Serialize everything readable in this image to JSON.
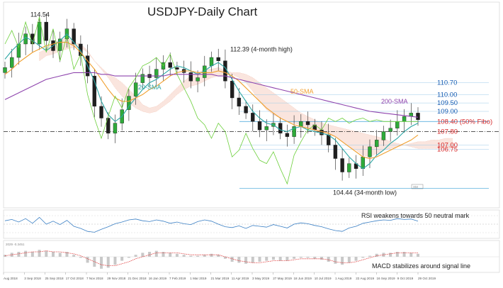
{
  "chart_data": {
    "type": "line",
    "title": "USDJPY-Daily Chart",
    "xlabel": "",
    "ylabel": "",
    "ylim": [
      103.4,
      115.4
    ],
    "x_ticks": [
      "Aug 2018",
      "3 Sep 2018",
      "25 Sep 2018",
      "17 Oct 2018",
      "7 Nov 2018",
      "29 Nov 2018",
      "21 Dec 2018",
      "16 Jan 2019",
      "7 Feb 2019",
      "1 Mar 2019",
      "21 Mar 2019",
      "11 Apr 2019",
      "3 May 2019",
      "27 May 2019",
      "18 Jun 2019",
      "10 Jul 2019",
      "1 Aug 2019",
      "22 Aug 2019",
      "16 Sep 2019",
      "9 Oct 2019",
      "29 Oct 2019"
    ],
    "price_labels": [
      {
        "text": "110.70",
        "value": 110.7,
        "color": "#1a5fb4"
      },
      {
        "text": "110.00",
        "value": 110.0,
        "color": "#1a5fb4"
      },
      {
        "text": "109.50",
        "value": 109.5,
        "color": "#1a5fb4"
      },
      {
        "text": "109.00",
        "value": 109.0,
        "color": "#1a5fb4"
      },
      {
        "text": "108.40 (50% Fibo)",
        "value": 108.4,
        "color": "#d62728"
      },
      {
        "text": "107.80",
        "value": 107.8,
        "color": "#d62728"
      },
      {
        "text": "107.00",
        "value": 107.0,
        "color": "#d62728"
      },
      {
        "text": "106.75",
        "value": 106.75,
        "color": "#d62728"
      }
    ],
    "annotations": [
      {
        "text": "114.54",
        "value": 114.54,
        "color": "#222222"
      },
      {
        "text": "112.39 (4-month high)",
        "value": 112.39,
        "color": "#222222"
      },
      {
        "text": "104.44 (34-month low)",
        "value": 104.44,
        "color": "#222222"
      },
      {
        "text": "20-SMA",
        "color": "#2ca6a4"
      },
      {
        "text": "50-SMA",
        "color": "#f0a030"
      },
      {
        "text": "200-SMA",
        "color": "#8e44ad"
      }
    ],
    "levels": {
      "fibo_100": 114.54,
      "fibo_50": 108.4,
      "fibo_0": 104.44,
      "dashed_level": 107.8
    },
    "series": [
      {
        "name": "20-SMA",
        "color": "#2ca6a4",
        "values": [
          112.1,
          112.6,
          113.0,
          113.4,
          113.2,
          112.9,
          112.6,
          112.9,
          113.2,
          113.6,
          113.1,
          112.6,
          111.7,
          110.8,
          109.6,
          108.8,
          108.4,
          108.7,
          109.3,
          109.8,
          110.3,
          110.7,
          110.9,
          111.2,
          111.5,
          111.7,
          111.6,
          111.4,
          111.2,
          111.4,
          111.7,
          111.9,
          111.6,
          110.9,
          110.2,
          109.6,
          109.0,
          108.6,
          108.3,
          108.2,
          107.9,
          107.8,
          108.0,
          108.1,
          107.9,
          107.8,
          107.7,
          107.6,
          107.3,
          106.8,
          106.3,
          105.9,
          105.6,
          105.9,
          106.4,
          106.7,
          107.1,
          107.4,
          107.8,
          108.1,
          108.3
        ]
      },
      {
        "name": "50-SMA",
        "color": "#f0a030",
        "values": [
          111.2,
          111.5,
          111.9,
          112.2,
          112.5,
          112.7,
          112.9,
          113.0,
          113.1,
          113.1,
          112.9,
          112.5,
          112.0,
          111.5,
          110.9,
          110.3,
          109.8,
          109.6,
          109.6,
          109.8,
          110.0,
          110.3,
          110.5,
          110.8,
          111.1,
          111.3,
          111.4,
          111.4,
          111.3,
          111.3,
          111.3,
          111.4,
          111.3,
          111.1,
          110.8,
          110.4,
          110.0,
          109.6,
          109.2,
          108.9,
          108.6,
          108.4,
          108.2,
          108.1,
          108.0,
          107.9,
          107.8,
          107.7,
          107.5,
          107.2,
          106.9,
          106.6,
          106.3,
          106.2,
          106.3,
          106.5,
          106.7,
          106.9,
          107.1,
          107.3,
          107.6
        ]
      },
      {
        "name": "200-SMA",
        "color": "#8e44ad",
        "values": [
          109.7,
          109.9,
          110.1,
          110.3,
          110.5,
          110.7,
          110.9,
          111.0,
          111.1,
          111.2,
          111.3,
          111.3,
          111.3,
          111.3,
          111.2,
          111.2,
          111.1,
          111.1,
          111.1,
          111.1,
          111.1,
          111.1,
          111.1,
          111.1,
          111.2,
          111.2,
          111.2,
          111.2,
          111.2,
          111.2,
          111.2,
          111.1,
          111.1,
          111.0,
          110.9,
          110.8,
          110.7,
          110.6,
          110.5,
          110.4,
          110.3,
          110.2,
          110.1,
          110.0,
          109.9,
          109.8,
          109.7,
          109.6,
          109.5,
          109.4,
          109.3,
          109.2,
          109.1,
          109.0,
          108.95,
          108.9,
          108.85,
          108.8,
          108.75,
          108.7,
          108.65
        ]
      },
      {
        "name": "Chikou",
        "color": "#6bcf3a",
        "values": [
          113.0,
          113.8,
          112.8,
          114.3,
          113.0,
          114.6,
          112.5,
          113.9,
          112.0,
          113.5,
          111.5,
          112.4,
          110.0,
          108.6,
          107.4,
          108.7,
          109.9,
          109.2,
          110.4,
          111.0,
          111.7,
          111.9,
          112.2,
          111.7,
          112.4,
          111.2,
          110.4,
          109.6,
          108.6,
          108.2,
          107.4,
          108.3,
          107.8,
          106.3,
          106.7,
          107.7,
          106.8,
          106.1,
          105.9,
          106.6,
          105.6,
          104.7,
          106.4,
          107.2,
          107.9,
          108.2,
          107.9,
          108.6,
          108.4,
          108.6,
          108.3,
          108.5,
          108.6,
          108.4,
          108.5,
          108.4,
          108.4,
          108.4,
          108.4,
          108.4,
          108.4
        ]
      }
    ],
    "candles_close": [
      111.6,
      112.2,
      113.0,
      113.6,
      113.0,
      114.3,
      113.2,
      112.6,
      113.3,
      113.9,
      113.0,
      112.3,
      111.1,
      109.3,
      108.6,
      107.7,
      108.3,
      109.1,
      109.9,
      110.7,
      111.2,
      111.0,
      111.5,
      111.9,
      111.6,
      111.5,
      111.3,
      110.8,
      111.0,
      111.7,
      112.2,
      112.0,
      110.8,
      109.8,
      109.3,
      108.9,
      108.4,
      107.9,
      108.1,
      108.3,
      107.7,
      107.5,
      108.1,
      108.4,
      108.2,
      107.9,
      107.6,
      107.0,
      106.2,
      105.4,
      105.9,
      105.6,
      106.3,
      106.9,
      107.3,
      107.8,
      108.0,
      108.4,
      108.7,
      108.9,
      108.5
    ],
    "cloud": {
      "span_a": [
        112.5,
        112.7,
        113.1,
        113.2,
        113.4,
        113.1,
        113.0,
        112.6,
        112.0,
        111.5,
        111.2,
        111.0,
        110.7,
        110.3,
        109.9,
        109.4,
        109.2,
        109.3,
        109.6,
        110.0,
        110.4,
        110.8,
        111.1,
        111.3,
        111.5,
        111.5,
        111.6,
        111.4,
        111.2,
        111.0,
        110.7,
        110.2,
        109.6,
        109.1,
        108.8,
        108.6,
        108.4,
        108.3,
        108.2,
        108.0,
        107.9,
        107.7,
        107.6,
        107.5,
        107.2,
        106.9,
        106.7,
        106.4,
        106.3,
        106.5,
        106.7,
        106.8,
        106.9,
        107.0,
        107.1,
        107.2,
        107.2,
        107.3,
        107.3,
        107.4,
        107.4
      ],
      "span_b": [
        112.0,
        112.3,
        112.4,
        112.6,
        112.7,
        112.8,
        112.8,
        112.5,
        112.0,
        111.6,
        111.0,
        110.4,
        109.9,
        109.5,
        109.2,
        109.0,
        108.9,
        109.0,
        109.3,
        109.6,
        110.0,
        110.3,
        110.5,
        110.6,
        110.8,
        111.0,
        111.1,
        111.2,
        111.3,
        111.3,
        111.2,
        111.0,
        110.7,
        110.4,
        110.1,
        109.8,
        109.5,
        109.2,
        108.9,
        108.7,
        108.5,
        108.3,
        108.2,
        108.1,
        108.0,
        107.9,
        107.8,
        107.7,
        107.6,
        107.5,
        107.4,
        107.2,
        107.1,
        107.0,
        106.9,
        106.8,
        106.8,
        106.8,
        106.8,
        106.8,
        106.8
      ]
    },
    "rsi": {
      "label": "RSI weakens towards 50 neutral mark",
      "values": [
        58,
        61,
        55,
        63,
        52,
        66,
        50,
        57,
        49,
        59,
        45,
        40,
        33,
        31,
        38,
        44,
        51,
        55,
        60,
        62,
        58,
        56,
        60,
        57,
        52,
        55,
        51,
        49,
        56,
        60,
        57,
        50,
        44,
        42,
        46,
        40,
        47,
        45,
        43,
        49,
        45,
        41,
        50,
        53,
        51,
        47,
        44,
        39,
        35,
        33,
        41,
        45,
        52,
        55,
        58,
        60,
        59,
        63,
        61,
        62,
        57
      ],
      "levels": [
        30,
        50,
        70
      ]
    },
    "macd": {
      "label": "MACD stabilizes around signal line",
      "header": "2029 -0.3451",
      "histogram": [
        0.2,
        0.4,
        0.5,
        0.6,
        0.5,
        0.7,
        0.6,
        0.5,
        0.4,
        0.5,
        0.2,
        -0.1,
        -0.6,
        -1.0,
        -1.2,
        -1.1,
        -0.8,
        -0.4,
        -0.1,
        0.2,
        0.4,
        0.5,
        0.6,
        0.5,
        0.4,
        0.3,
        0.2,
        0.1,
        0.1,
        0.2,
        0.3,
        0.2,
        -0.2,
        -0.5,
        -0.6,
        -0.7,
        -0.6,
        -0.5,
        -0.4,
        -0.3,
        -0.4,
        -0.4,
        -0.2,
        -0.1,
        -0.1,
        -0.2,
        -0.3,
        -0.5,
        -0.7,
        -0.8,
        -0.6,
        -0.4,
        -0.1,
        0.1,
        0.3,
        0.4,
        0.4,
        0.5,
        0.5,
        0.4,
        0.3
      ],
      "signal": [
        0.1,
        0.2,
        0.3,
        0.4,
        0.5,
        0.5,
        0.6,
        0.5,
        0.5,
        0.4,
        0.3,
        0.1,
        -0.2,
        -0.5,
        -0.8,
        -0.9,
        -0.9,
        -0.7,
        -0.5,
        -0.2,
        0.0,
        0.2,
        0.4,
        0.4,
        0.4,
        0.4,
        0.3,
        0.2,
        0.2,
        0.2,
        0.2,
        0.2,
        0.0,
        -0.2,
        -0.4,
        -0.5,
        -0.6,
        -0.6,
        -0.5,
        -0.4,
        -0.4,
        -0.4,
        -0.3,
        -0.2,
        -0.2,
        -0.2,
        -0.2,
        -0.3,
        -0.5,
        -0.6,
        -0.6,
        -0.5,
        -0.3,
        -0.1,
        0.1,
        0.2,
        0.3,
        0.4,
        0.4,
        0.4,
        0.4
      ]
    },
    "watermark": "XM"
  }
}
